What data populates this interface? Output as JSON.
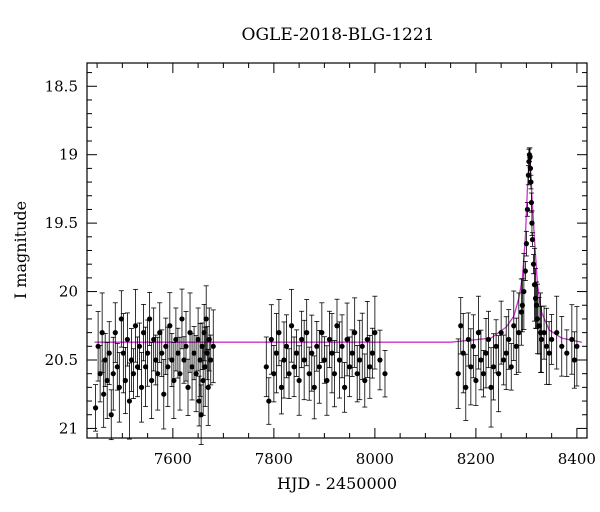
{
  "chart_data": {
    "type": "scatter",
    "title": "OGLE-2018-BLG-1221",
    "xlabel": "HJD - 2450000",
    "ylabel": "I magnitude",
    "xlim": [
      7430,
      8420
    ],
    "ylim": [
      21.07,
      18.33
    ],
    "y_inverted": true,
    "grid": false,
    "legend": "none",
    "x_ticks": [
      7600,
      7800,
      8000,
      8200,
      8400
    ],
    "y_ticks": [
      18.5,
      19,
      19.5,
      20,
      20.5,
      21
    ],
    "y_tick_labels": [
      "18.5",
      "19",
      "19.5",
      "20",
      "20.5",
      "21"
    ],
    "point_color": "#000000",
    "model_color": "#cc33cc",
    "model": {
      "baseline": 20.37,
      "t0": 8306,
      "peak_mag": 19.0,
      "x": [
        7445,
        8150,
        8230,
        8260,
        8275,
        8285,
        8292,
        8298,
        8302,
        8305,
        8306,
        8308,
        8311,
        8316,
        8322,
        8330,
        8345,
        8370,
        8410
      ],
      "y": [
        20.37,
        20.37,
        20.34,
        20.26,
        20.18,
        20.05,
        19.9,
        19.6,
        19.25,
        19.05,
        19.0,
        19.08,
        19.3,
        19.62,
        19.95,
        20.15,
        20.28,
        20.34,
        20.37
      ]
    },
    "series": [
      {
        "x": [
          7447,
          7452,
          7456,
          7460,
          7463,
          7466,
          7470,
          7474,
          7478,
          7482,
          7486,
          7490,
          7494,
          7498,
          7502,
          7506,
          7510,
          7514,
          7518,
          7522,
          7526,
          7530,
          7534,
          7538,
          7542,
          7546,
          7550,
          7554,
          7558,
          7562,
          7566,
          7570,
          7574,
          7578,
          7582,
          7586,
          7590,
          7594,
          7598,
          7602,
          7606,
          7610,
          7614,
          7618,
          7622,
          7626,
          7630,
          7634,
          7638,
          7642,
          7646,
          7650,
          7652,
          7654,
          7656,
          7658,
          7660,
          7662,
          7664,
          7666,
          7668,
          7670,
          7672,
          7675,
          7680,
          7785,
          7790,
          7795,
          7800,
          7805,
          7810,
          7815,
          7820,
          7825,
          7830,
          7835,
          7840,
          7845,
          7850,
          7855,
          7860,
          7865,
          7870,
          7875,
          7880,
          7885,
          7890,
          7895,
          7900,
          7905,
          7910,
          7915,
          7920,
          7925,
          7930,
          7935,
          7940,
          7945,
          7950,
          7955,
          7960,
          7965,
          7970,
          7975,
          7980,
          7985,
          7990,
          7995,
          8000,
          8010,
          8020,
          8165,
          8170,
          8175,
          8180,
          8185,
          8190,
          8195,
          8200,
          8205,
          8210,
          8215,
          8220,
          8225,
          8230,
          8235,
          8240,
          8245,
          8250,
          8255,
          8260,
          8265,
          8270,
          8275,
          8280,
          8285,
          8290,
          8292,
          8295,
          8298,
          8300,
          8302,
          8304,
          8305,
          8306,
          8307,
          8308,
          8309,
          8310,
          8311,
          8312,
          8314,
          8316,
          8318,
          8320,
          8322,
          8325,
          8328,
          8330,
          8335,
          8340,
          8345,
          8350,
          8360,
          8370,
          8380,
          8390,
          8395,
          8400
        ],
        "y": [
          20.85,
          20.4,
          20.6,
          20.3,
          20.75,
          20.5,
          20.65,
          20.45,
          20.9,
          20.6,
          20.3,
          20.55,
          20.7,
          20.2,
          20.45,
          20.65,
          20.35,
          20.8,
          20.5,
          20.6,
          20.25,
          20.55,
          20.4,
          20.7,
          20.3,
          20.55,
          20.45,
          20.2,
          20.65,
          20.35,
          20.5,
          20.6,
          20.3,
          20.45,
          20.75,
          20.4,
          20.55,
          20.25,
          20.5,
          20.65,
          20.35,
          20.45,
          20.6,
          20.2,
          20.5,
          20.4,
          20.7,
          20.3,
          20.55,
          20.45,
          20.6,
          20.35,
          20.8,
          20.5,
          20.9,
          20.4,
          20.65,
          20.3,
          20.55,
          20.2,
          20.45,
          20.7,
          20.35,
          20.5,
          20.4,
          20.55,
          20.8,
          20.35,
          20.6,
          20.45,
          20.3,
          20.7,
          20.5,
          20.4,
          20.6,
          20.25,
          20.55,
          20.45,
          20.65,
          20.35,
          20.5,
          20.3,
          20.6,
          20.45,
          20.7,
          20.4,
          20.55,
          20.3,
          20.5,
          20.65,
          20.35,
          20.45,
          20.6,
          20.25,
          20.5,
          20.4,
          20.7,
          20.35,
          20.55,
          20.45,
          20.3,
          20.6,
          20.5,
          20.4,
          20.65,
          20.35,
          20.55,
          20.45,
          20.3,
          20.5,
          20.6,
          20.6,
          20.25,
          20.45,
          20.7,
          20.35,
          20.55,
          20.4,
          20.65,
          20.3,
          20.5,
          20.6,
          20.45,
          20.35,
          20.7,
          20.55,
          20.4,
          20.6,
          20.3,
          20.5,
          20.45,
          20.35,
          20.55,
          20.25,
          20.4,
          20.3,
          20.15,
          20.1,
          20.0,
          19.85,
          19.65,
          19.4,
          19.15,
          19.05,
          19.0,
          19.02,
          19.1,
          19.2,
          19.35,
          19.5,
          19.62,
          19.8,
          19.95,
          20.05,
          20.1,
          20.2,
          20.25,
          20.3,
          20.35,
          20.3,
          20.4,
          20.45,
          20.35,
          20.3,
          20.4,
          20.45,
          20.35,
          20.5,
          20.4
        ],
        "error_bars": true
      }
    ]
  }
}
